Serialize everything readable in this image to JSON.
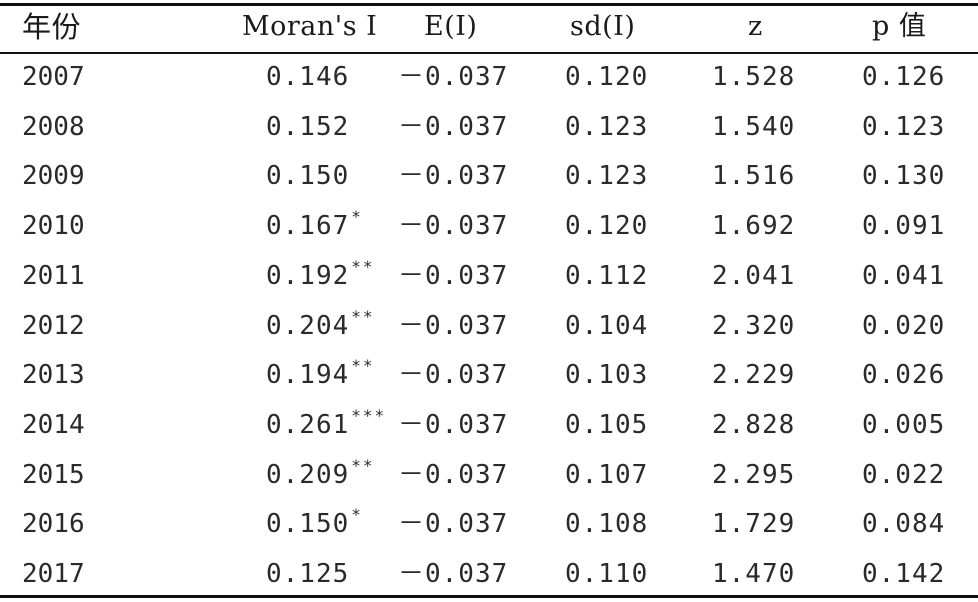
{
  "table": {
    "headers": {
      "year": "年份",
      "moran": "Moran's I",
      "ei": "E(I)",
      "sd": "sd(I)",
      "z": "z",
      "p": "p 值"
    },
    "rows": [
      {
        "year": "2007",
        "moran": "0.146",
        "sig": "",
        "ei": "－0.037",
        "sd": "0.120",
        "z": "1.528",
        "p": "0.126"
      },
      {
        "year": "2008",
        "moran": "0.152",
        "sig": "",
        "ei": "－0.037",
        "sd": "0.123",
        "z": "1.540",
        "p": "0.123"
      },
      {
        "year": "2009",
        "moran": "0.150",
        "sig": "",
        "ei": "－0.037",
        "sd": "0.123",
        "z": "1.516",
        "p": "0.130"
      },
      {
        "year": "2010",
        "moran": "0.167",
        "sig": "*",
        "ei": "－0.037",
        "sd": "0.120",
        "z": "1.692",
        "p": "0.091"
      },
      {
        "year": "2011",
        "moran": "0.192",
        "sig": "**",
        "ei": "－0.037",
        "sd": "0.112",
        "z": "2.041",
        "p": "0.041"
      },
      {
        "year": "2012",
        "moran": "0.204",
        "sig": "**",
        "ei": "－0.037",
        "sd": "0.104",
        "z": "2.320",
        "p": "0.020"
      },
      {
        "year": "2013",
        "moran": "0.194",
        "sig": "**",
        "ei": "－0.037",
        "sd": "0.103",
        "z": "2.229",
        "p": "0.026"
      },
      {
        "year": "2014",
        "moran": "0.261",
        "sig": "***",
        "ei": "－0.037",
        "sd": "0.105",
        "z": "2.828",
        "p": "0.005"
      },
      {
        "year": "2015",
        "moran": "0.209",
        "sig": "**",
        "ei": "－0.037",
        "sd": "0.107",
        "z": "2.295",
        "p": "0.022"
      },
      {
        "year": "2016",
        "moran": "0.150",
        "sig": "*",
        "ei": "－0.037",
        "sd": "0.108",
        "z": "1.729",
        "p": "0.084"
      },
      {
        "year": "2017",
        "moran": "0.125",
        "sig": "",
        "ei": "－0.037",
        "sd": "0.110",
        "z": "1.470",
        "p": "0.142"
      }
    ]
  }
}
